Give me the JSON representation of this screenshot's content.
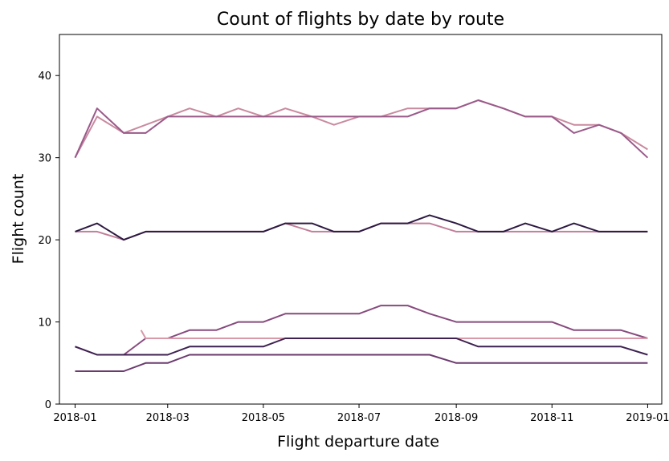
{
  "chart_data": {
    "type": "line",
    "title": "Count of flights by date by route",
    "xlabel": "Flight departure date",
    "ylabel": "Flight count",
    "xlim": [
      "2017-12-22",
      "2019-01-10"
    ],
    "ylim": [
      0,
      45
    ],
    "x_ticks": [
      "2018-01",
      "2018-03",
      "2018-05",
      "2018-07",
      "2018-09",
      "2018-11",
      "2019-01"
    ],
    "y_ticks": [
      0,
      10,
      20,
      30,
      40
    ],
    "grid": false,
    "legend": "none",
    "series": [
      {
        "color": "#c98a9f",
        "points": [
          [
            "2018-01-01",
            30
          ],
          [
            "2018-01-15",
            35
          ],
          [
            "2018-02-01",
            33
          ],
          [
            "2018-02-15",
            34
          ],
          [
            "2018-03-01",
            35
          ],
          [
            "2018-03-15",
            36
          ],
          [
            "2018-04-01",
            35
          ],
          [
            "2018-04-15",
            36
          ],
          [
            "2018-05-01",
            35
          ],
          [
            "2018-05-15",
            36
          ],
          [
            "2018-06-01",
            35
          ],
          [
            "2018-06-15",
            34
          ],
          [
            "2018-07-01",
            35
          ],
          [
            "2018-07-15",
            35
          ],
          [
            "2018-08-01",
            36
          ],
          [
            "2018-08-15",
            36
          ],
          [
            "2018-09-01",
            36
          ],
          [
            "2018-09-15",
            37
          ],
          [
            "2018-10-01",
            36
          ],
          [
            "2018-10-15",
            35
          ],
          [
            "2018-11-01",
            35
          ],
          [
            "2018-11-15",
            34
          ],
          [
            "2018-12-01",
            34
          ],
          [
            "2018-12-15",
            33
          ],
          [
            "2019-01-01",
            31
          ]
        ]
      },
      {
        "color": "#9a5a8a",
        "points": [
          [
            "2018-01-01",
            30
          ],
          [
            "2018-01-15",
            36
          ],
          [
            "2018-02-01",
            33
          ],
          [
            "2018-02-15",
            33
          ],
          [
            "2018-03-01",
            35
          ],
          [
            "2018-03-15",
            35
          ],
          [
            "2018-04-01",
            35
          ],
          [
            "2018-04-15",
            35
          ],
          [
            "2018-05-01",
            35
          ],
          [
            "2018-05-15",
            35
          ],
          [
            "2018-06-01",
            35
          ],
          [
            "2018-06-15",
            35
          ],
          [
            "2018-07-01",
            35
          ],
          [
            "2018-07-15",
            35
          ],
          [
            "2018-08-01",
            35
          ],
          [
            "2018-08-15",
            36
          ],
          [
            "2018-09-01",
            36
          ],
          [
            "2018-09-15",
            37
          ],
          [
            "2018-10-01",
            36
          ],
          [
            "2018-10-15",
            35
          ],
          [
            "2018-11-01",
            35
          ],
          [
            "2018-11-15",
            33
          ],
          [
            "2018-12-01",
            34
          ],
          [
            "2018-12-15",
            33
          ],
          [
            "2019-01-01",
            30
          ]
        ]
      },
      {
        "color": "#c27f99",
        "points": [
          [
            "2018-01-01",
            21
          ],
          [
            "2018-01-15",
            21
          ],
          [
            "2018-02-01",
            20
          ],
          [
            "2018-02-15",
            21
          ],
          [
            "2018-03-01",
            21
          ],
          [
            "2018-03-15",
            21
          ],
          [
            "2018-04-01",
            21
          ],
          [
            "2018-04-15",
            21
          ],
          [
            "2018-05-01",
            21
          ],
          [
            "2018-05-15",
            22
          ],
          [
            "2018-06-01",
            21
          ],
          [
            "2018-06-15",
            21
          ],
          [
            "2018-07-01",
            21
          ],
          [
            "2018-07-15",
            22
          ],
          [
            "2018-08-01",
            22
          ],
          [
            "2018-08-15",
            22
          ],
          [
            "2018-09-01",
            21
          ],
          [
            "2018-09-15",
            21
          ],
          [
            "2018-10-01",
            21
          ],
          [
            "2018-10-15",
            21
          ],
          [
            "2018-11-01",
            21
          ],
          [
            "2018-11-15",
            21
          ],
          [
            "2018-12-01",
            21
          ],
          [
            "2018-12-15",
            21
          ],
          [
            "2019-01-01",
            21
          ]
        ]
      },
      {
        "color": "#2d1a42",
        "points": [
          [
            "2018-01-01",
            21
          ],
          [
            "2018-01-15",
            22
          ],
          [
            "2018-02-01",
            20
          ],
          [
            "2018-02-15",
            21
          ],
          [
            "2018-03-01",
            21
          ],
          [
            "2018-03-15",
            21
          ],
          [
            "2018-04-01",
            21
          ],
          [
            "2018-04-15",
            21
          ],
          [
            "2018-05-01",
            21
          ],
          [
            "2018-05-15",
            22
          ],
          [
            "2018-06-01",
            22
          ],
          [
            "2018-06-15",
            21
          ],
          [
            "2018-07-01",
            21
          ],
          [
            "2018-07-15",
            22
          ],
          [
            "2018-08-01",
            22
          ],
          [
            "2018-08-15",
            23
          ],
          [
            "2018-09-01",
            22
          ],
          [
            "2018-09-15",
            21
          ],
          [
            "2018-10-01",
            21
          ],
          [
            "2018-10-15",
            22
          ],
          [
            "2018-11-01",
            21
          ],
          [
            "2018-11-15",
            22
          ],
          [
            "2018-12-01",
            21
          ],
          [
            "2018-12-15",
            21
          ],
          [
            "2019-01-01",
            21
          ]
        ]
      },
      {
        "color": "#874a7e",
        "points": [
          [
            "2018-01-01",
            7
          ],
          [
            "2018-01-15",
            6
          ],
          [
            "2018-02-01",
            6
          ],
          [
            "2018-02-15",
            8
          ],
          [
            "2018-03-01",
            8
          ],
          [
            "2018-03-15",
            9
          ],
          [
            "2018-04-01",
            9
          ],
          [
            "2018-04-15",
            10
          ],
          [
            "2018-05-01",
            10
          ],
          [
            "2018-05-15",
            11
          ],
          [
            "2018-06-01",
            11
          ],
          [
            "2018-06-15",
            11
          ],
          [
            "2018-07-01",
            11
          ],
          [
            "2018-07-15",
            12
          ],
          [
            "2018-08-01",
            12
          ],
          [
            "2018-08-15",
            11
          ],
          [
            "2018-09-01",
            10
          ],
          [
            "2018-09-15",
            10
          ],
          [
            "2018-10-01",
            10
          ],
          [
            "2018-10-15",
            10
          ],
          [
            "2018-11-01",
            10
          ],
          [
            "2018-11-15",
            9
          ],
          [
            "2018-12-01",
            9
          ],
          [
            "2018-12-15",
            9
          ],
          [
            "2019-01-01",
            8
          ]
        ]
      },
      {
        "color": "#d899a8",
        "points": [
          [
            "2018-02-12",
            9
          ],
          [
            "2018-02-15",
            8
          ],
          [
            "2018-03-01",
            8
          ],
          [
            "2018-03-15",
            8
          ],
          [
            "2018-04-01",
            8
          ],
          [
            "2018-04-15",
            8
          ],
          [
            "2018-05-01",
            8
          ],
          [
            "2018-05-15",
            8
          ],
          [
            "2018-06-01",
            8
          ],
          [
            "2018-06-15",
            8
          ],
          [
            "2018-07-01",
            8
          ],
          [
            "2018-07-15",
            8
          ],
          [
            "2018-08-01",
            8
          ],
          [
            "2018-08-15",
            8
          ],
          [
            "2018-09-01",
            8
          ],
          [
            "2018-09-15",
            8
          ],
          [
            "2018-10-01",
            8
          ],
          [
            "2018-10-15",
            8
          ],
          [
            "2018-11-01",
            8
          ],
          [
            "2018-11-15",
            8
          ],
          [
            "2018-12-01",
            8
          ],
          [
            "2018-12-15",
            8
          ],
          [
            "2019-01-01",
            8
          ]
        ]
      },
      {
        "color": "#3d2150",
        "points": [
          [
            "2018-01-01",
            7
          ],
          [
            "2018-01-15",
            6
          ],
          [
            "2018-02-01",
            6
          ],
          [
            "2018-02-15",
            6
          ],
          [
            "2018-03-01",
            6
          ],
          [
            "2018-03-15",
            7
          ],
          [
            "2018-04-01",
            7
          ],
          [
            "2018-04-15",
            7
          ],
          [
            "2018-05-01",
            7
          ],
          [
            "2018-05-15",
            8
          ],
          [
            "2018-06-01",
            8
          ],
          [
            "2018-06-15",
            8
          ],
          [
            "2018-07-01",
            8
          ],
          [
            "2018-07-15",
            8
          ],
          [
            "2018-08-01",
            8
          ],
          [
            "2018-08-15",
            8
          ],
          [
            "2018-09-01",
            8
          ],
          [
            "2018-09-15",
            7
          ],
          [
            "2018-10-01",
            7
          ],
          [
            "2018-10-15",
            7
          ],
          [
            "2018-11-01",
            7
          ],
          [
            "2018-11-15",
            7
          ],
          [
            "2018-12-01",
            7
          ],
          [
            "2018-12-15",
            7
          ],
          [
            "2019-01-01",
            6
          ]
        ]
      },
      {
        "color": "#6b3a6f",
        "points": [
          [
            "2018-01-01",
            4
          ],
          [
            "2018-01-15",
            4
          ],
          [
            "2018-02-01",
            4
          ],
          [
            "2018-02-15",
            5
          ],
          [
            "2018-03-01",
            5
          ],
          [
            "2018-03-15",
            6
          ],
          [
            "2018-04-01",
            6
          ],
          [
            "2018-04-15",
            6
          ],
          [
            "2018-05-01",
            6
          ],
          [
            "2018-05-15",
            6
          ],
          [
            "2018-06-01",
            6
          ],
          [
            "2018-06-15",
            6
          ],
          [
            "2018-07-01",
            6
          ],
          [
            "2018-07-15",
            6
          ],
          [
            "2018-08-01",
            6
          ],
          [
            "2018-08-15",
            6
          ],
          [
            "2018-09-01",
            5
          ],
          [
            "2018-09-15",
            5
          ],
          [
            "2018-10-01",
            5
          ],
          [
            "2018-10-15",
            5
          ],
          [
            "2018-11-01",
            5
          ],
          [
            "2018-11-15",
            5
          ],
          [
            "2018-12-01",
            5
          ],
          [
            "2018-12-15",
            5
          ],
          [
            "2019-01-01",
            5
          ]
        ]
      }
    ]
  }
}
